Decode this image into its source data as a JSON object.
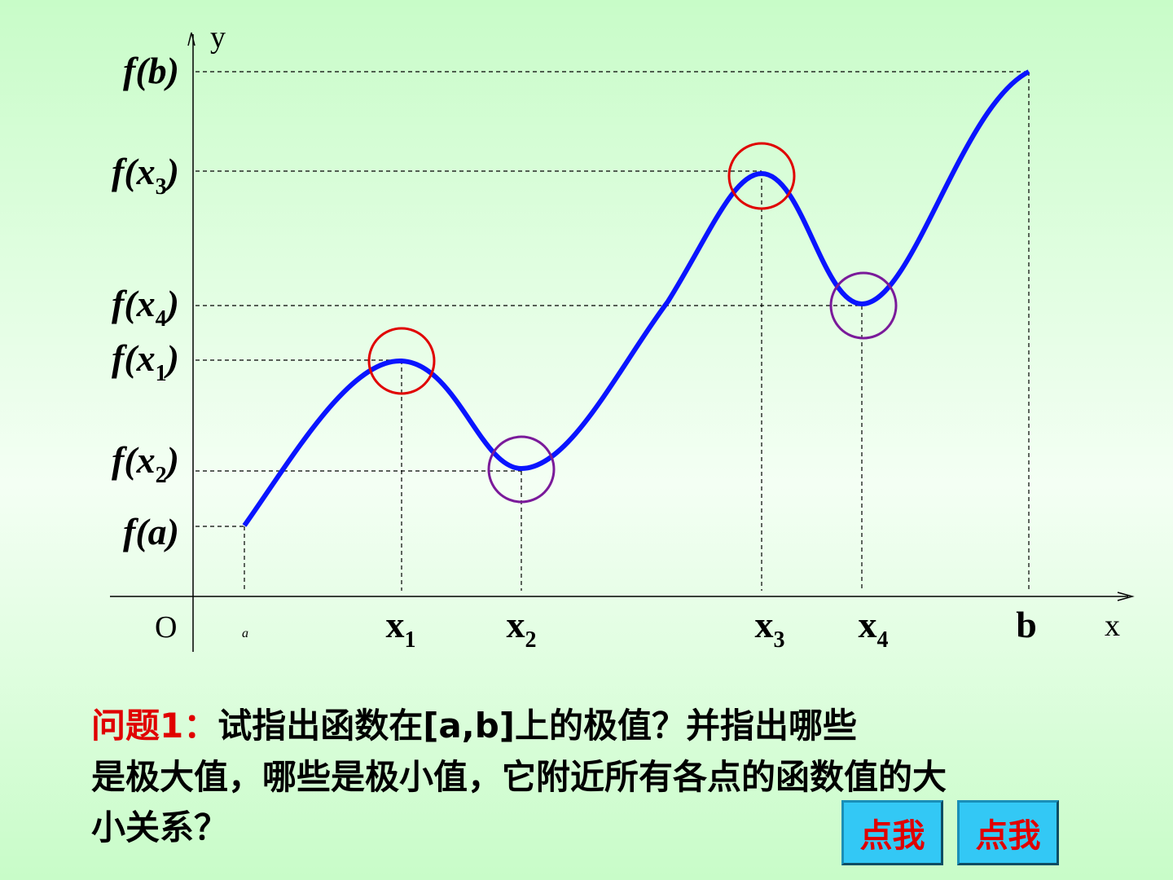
{
  "axes": {
    "y": "y",
    "x": "x",
    "origin": "O"
  },
  "x_labels": [
    {
      "before": "a"
    },
    {
      "before": "x",
      "sub": "1"
    },
    {
      "before": "x",
      "sub": "2"
    },
    {
      "before": "x",
      "sub": "3"
    },
    {
      "before": "x",
      "sub": "4"
    },
    {
      "before": "b"
    }
  ],
  "y_labels": [
    {
      "before": "f(b)"
    },
    {
      "before": "f(x",
      "sub": "3",
      "after": ")"
    },
    {
      "before": "f(x",
      "sub": "4",
      "after": ")"
    },
    {
      "before": "f(x",
      "sub": "1",
      "after": ")"
    },
    {
      "before": "f(x",
      "sub": "2",
      "after": ")"
    },
    {
      "before": "f(a)"
    }
  ],
  "question": {
    "prefix": "问题1：",
    "lines": [
      "试指出函数在[a,b]上的极值？并指出哪些",
      "是极大值，哪些是极小值，它附近所有各点的函数值的大",
      "小关系？"
    ]
  },
  "buttons": [
    "点我",
    "点我"
  ]
}
